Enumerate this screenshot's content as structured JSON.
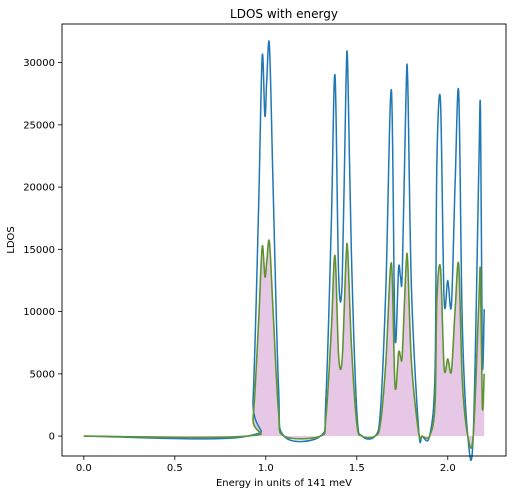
{
  "chart_data": {
    "type": "line",
    "title": "LDOS with energy",
    "xlabel": "Energy in units of 141 meV",
    "ylabel": "LDOS",
    "xlim": [
      -0.12,
      2.32
    ],
    "ylim": [
      -1600,
      33100
    ],
    "xticks": [
      0.0,
      0.5,
      1.0,
      1.5,
      2.0
    ],
    "xtick_labels": [
      "0.0",
      "0.5",
      "1.0",
      "1.5",
      "2.0"
    ],
    "yticks": [
      0,
      5000,
      10000,
      15000,
      20000,
      25000,
      30000
    ],
    "ytick_labels": [
      "0",
      "5000",
      "10000",
      "15000",
      "20000",
      "25000",
      "30000"
    ],
    "grid": false,
    "colors": {
      "total": "#1f77b4",
      "partial_line": "#6b8e23",
      "partial_fill": "#e6c8e6",
      "green_line": "#4ea24e"
    },
    "series": [
      {
        "key": "total",
        "style": "line",
        "x": [
          0.0,
          0.9,
          0.93,
          0.96,
          0.98,
          0.995,
          1.005,
          1.02,
          1.04,
          1.07,
          1.1,
          1.3,
          1.33,
          1.36,
          1.38,
          1.4,
          1.42,
          1.44,
          1.45,
          1.47,
          1.5,
          1.53,
          1.6,
          1.63,
          1.66,
          1.69,
          1.71,
          1.73,
          1.74,
          1.75,
          1.77,
          1.78,
          1.8,
          1.84,
          1.86,
          1.9,
          1.93,
          1.94,
          1.96,
          1.98,
          2.0,
          2.02,
          2.04,
          2.06,
          2.08,
          2.11,
          2.14,
          2.17,
          2.18,
          2.19,
          2.2
        ],
        "y": [
          0,
          0,
          3000,
          18000,
          30500,
          25700,
          28500,
          31400,
          20000,
          4000,
          0,
          0,
          3000,
          17000,
          29000,
          13000,
          12500,
          28000,
          29800,
          15000,
          2000,
          0,
          0,
          2000,
          12000,
          27800,
          8000,
          13500,
          12800,
          13200,
          27000,
          28600,
          12000,
          500,
          0,
          0,
          5000,
          22000,
          26900,
          11000,
          12500,
          10500,
          20000,
          27600,
          9000,
          0,
          0,
          21000,
          26100,
          6000,
          10200
        ]
      },
      {
        "key": "partial",
        "style": "line+fill",
        "x": [
          0.0,
          0.9,
          0.93,
          0.96,
          0.98,
          0.995,
          1.005,
          1.02,
          1.04,
          1.07,
          1.1,
          1.3,
          1.33,
          1.36,
          1.38,
          1.4,
          1.42,
          1.44,
          1.45,
          1.47,
          1.5,
          1.53,
          1.6,
          1.63,
          1.66,
          1.69,
          1.71,
          1.73,
          1.74,
          1.75,
          1.77,
          1.78,
          1.8,
          1.84,
          1.86,
          1.9,
          1.93,
          1.94,
          1.96,
          1.98,
          2.0,
          2.02,
          2.04,
          2.06,
          2.08,
          2.11,
          2.14,
          2.17,
          2.18,
          2.19,
          2.2
        ],
        "y": [
          0,
          0,
          1500,
          9000,
          15200,
          12800,
          14000,
          15600,
          10000,
          2000,
          0,
          0,
          1500,
          8500,
          14500,
          6500,
          6200,
          14000,
          14900,
          7500,
          1000,
          0,
          0,
          1000,
          6000,
          13900,
          4000,
          6700,
          6400,
          6600,
          13400,
          14000,
          6000,
          250,
          0,
          0,
          2500,
          11000,
          13500,
          5500,
          6200,
          5200,
          10000,
          13800,
          4500,
          0,
          0,
          10500,
          13100,
          2400,
          5000
        ]
      }
    ]
  }
}
